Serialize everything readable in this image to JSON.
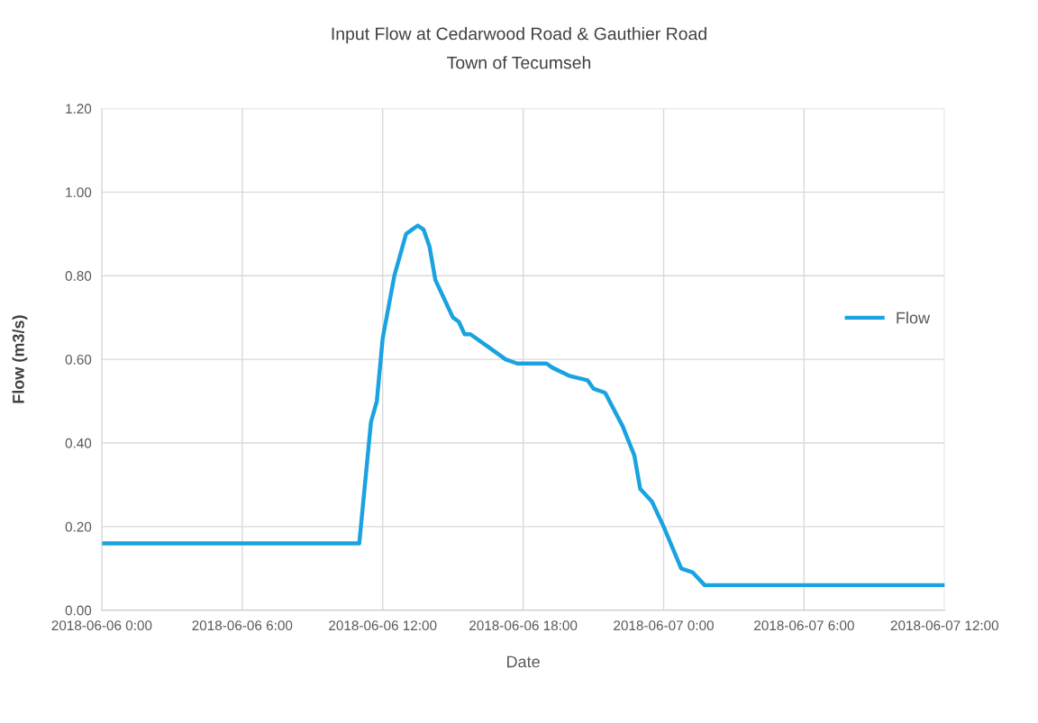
{
  "chart_data": {
    "type": "line",
    "title": "Input Flow at Cedarwood Road & Gauthier Road",
    "subtitle": "Town of Tecumseh",
    "xlabel": "Date",
    "ylabel": "Flow (m3/s)",
    "x": [
      "2018-06-06T00:00",
      "2018-06-06T11:00",
      "2018-06-06T11:30",
      "2018-06-06T11:45",
      "2018-06-06T12:00",
      "2018-06-06T12:30",
      "2018-06-06T13:00",
      "2018-06-06T13:15",
      "2018-06-06T13:30",
      "2018-06-06T13:45",
      "2018-06-06T14:00",
      "2018-06-06T14:15",
      "2018-06-06T14:45",
      "2018-06-06T15:00",
      "2018-06-06T15:15",
      "2018-06-06T15:30",
      "2018-06-06T15:45",
      "2018-06-06T16:30",
      "2018-06-06T17:15",
      "2018-06-06T17:45",
      "2018-06-06T19:00",
      "2018-06-06T19:15",
      "2018-06-06T20:00",
      "2018-06-06T20:45",
      "2018-06-06T21:00",
      "2018-06-06T21:30",
      "2018-06-06T22:15",
      "2018-06-06T22:45",
      "2018-06-06T23:00",
      "2018-06-06T23:30",
      "2018-06-07T00:00",
      "2018-06-07T00:45",
      "2018-06-07T01:15",
      "2018-06-07T01:45",
      "2018-06-07T12:00"
    ],
    "series": [
      {
        "name": "Flow",
        "color": "#1aa3e0",
        "values": [
          0.16,
          0.16,
          0.45,
          0.5,
          0.65,
          0.8,
          0.9,
          0.91,
          0.92,
          0.91,
          0.87,
          0.79,
          0.73,
          0.7,
          0.69,
          0.66,
          0.66,
          0.63,
          0.6,
          0.59,
          0.59,
          0.58,
          0.56,
          0.55,
          0.53,
          0.52,
          0.44,
          0.37,
          0.29,
          0.26,
          0.2,
          0.1,
          0.09,
          0.06,
          0.06
        ]
      }
    ],
    "xlim": [
      "2018-06-06T00:00",
      "2018-06-07T12:00"
    ],
    "xticks": [
      {
        "value": "2018-06-06T00:00",
        "label": "2018-06-06 0:00"
      },
      {
        "value": "2018-06-06T06:00",
        "label": "2018-06-06 6:00"
      },
      {
        "value": "2018-06-06T12:00",
        "label": "2018-06-06 12:00"
      },
      {
        "value": "2018-06-06T18:00",
        "label": "2018-06-06 18:00"
      },
      {
        "value": "2018-06-07T00:00",
        "label": "2018-06-07 0:00"
      },
      {
        "value": "2018-06-07T06:00",
        "label": "2018-06-07 6:00"
      },
      {
        "value": "2018-06-07T12:00",
        "label": "2018-06-07 12:00"
      }
    ],
    "ylim": [
      0,
      1.2
    ],
    "yticks": [
      {
        "value": 0,
        "label": "0.00"
      },
      {
        "value": 0.2,
        "label": "0.20"
      },
      {
        "value": 0.4,
        "label": "0.40"
      },
      {
        "value": 0.6,
        "label": "0.60"
      },
      {
        "value": 0.8,
        "label": "0.80"
      },
      {
        "value": 1.0,
        "label": "1.00"
      },
      {
        "value": 1.2,
        "label": "1.20"
      }
    ],
    "grid": true,
    "legend": "right",
    "marker": "none",
    "line_style": "solid"
  }
}
